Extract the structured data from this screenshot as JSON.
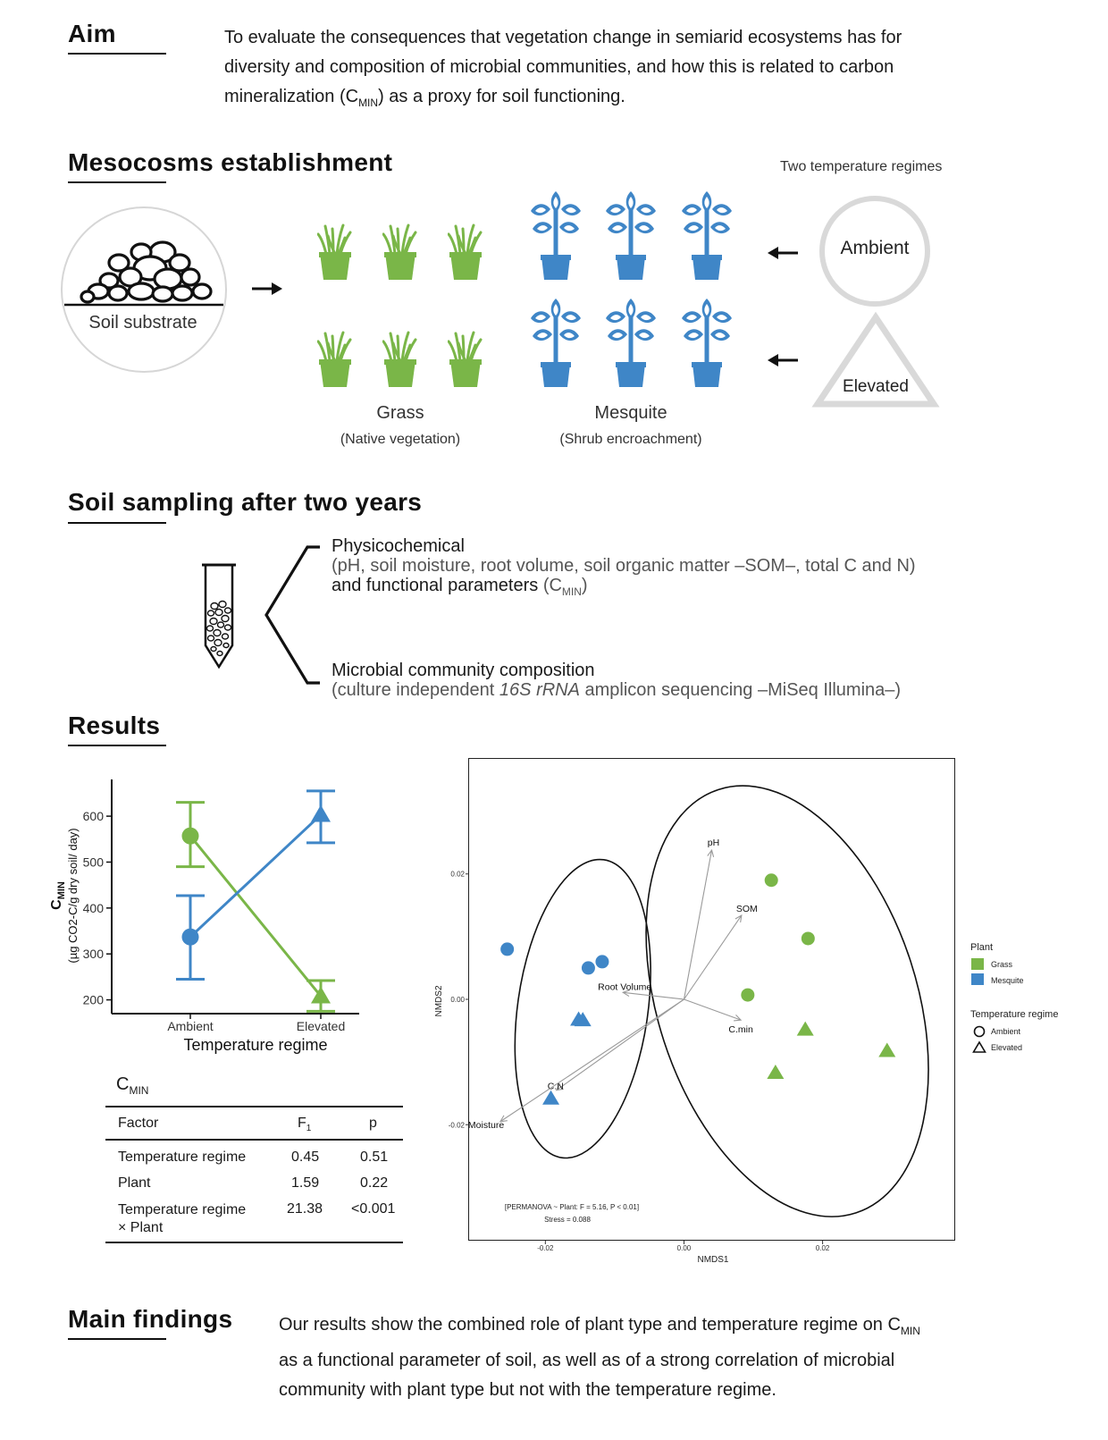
{
  "aim": {
    "heading": "Aim",
    "text_1": "To evaluate the consequences that vegetation change in semiarid ecosystems has for",
    "text_2": "diversity and composition of microbial communities, and how this is related to carbon",
    "text_3a": "mineralization (C",
    "text_3_sub": "MIN",
    "text_3b": ") as a proxy for soil functioning."
  },
  "mesocosms": {
    "heading": "Mesocosms establishment",
    "temp_title": "Two temperature regimes",
    "soil_label": "Soil substrate",
    "ambient_label": "Ambient",
    "elevated_label": "Elevated",
    "grass_label": "Grass",
    "grass_sub": "(Native vegetation)",
    "mesquite_label": "Mesquite",
    "mesquite_sub": "(Shrub encroachment)",
    "colors": {
      "grass": "#7ab648",
      "mesquite": "#3f86c7",
      "ring": "#d9d9d9"
    }
  },
  "sampling": {
    "heading": "Soil sampling after two years",
    "item1_title": "Physicochemical",
    "item1_detail": "(pH, soil moisture, root volume, soil organic matter –SOM–, total C and N)",
    "item1_line3a": "and functional parameters",
    "item1_line3b": "(C",
    "item1_line3_sub": "MIN",
    "item1_line3c": ")",
    "item2_title": "Microbial community composition",
    "item2_detail_a": "(culture independent",
    "item2_detail_italic": "16S rRNA",
    "item2_detail_b": "amplicon sequencing –MiSeq Illumina–)"
  },
  "results": {
    "heading": "Results",
    "anova": {
      "title": "C",
      "title_sub": "MIN",
      "headers": [
        "Factor",
        "F",
        "p"
      ],
      "f_sub": "1",
      "rows": [
        [
          "Temperature regime",
          "0.45",
          "0.51"
        ],
        [
          "Plant",
          "1.59",
          "0.22"
        ],
        [
          "Temperature regime",
          "21.38",
          "<0.001"
        ]
      ],
      "row3_line2": "× Plant"
    }
  },
  "findings": {
    "heading": "Main findings",
    "line1a": "Our results show the combined role of plant type and temperature regime on C",
    "line1_sub": "MIN",
    "line2": "as a functional parameter of soil, as well as of a strong correlation of microbial",
    "line3": "community with plant type but not with the temperature regime."
  },
  "chart_data": [
    {
      "type": "line",
      "xlabel": "Temperature regime",
      "ylabel_main": "C",
      "ylabel_sub": "MIN",
      "ylabel_units": "(µg CO2-C/g dry soil/ day)",
      "categories": [
        "Ambient",
        "Elevated"
      ],
      "yticks": [
        200,
        300,
        400,
        500,
        600
      ],
      "ylim": [
        170,
        680
      ],
      "series": [
        {
          "key": "grass",
          "values": [
            557,
            208
          ],
          "err_lo": [
            490,
            175
          ],
          "err_hi": [
            630,
            242
          ],
          "color": "#7ab648"
        },
        {
          "key": "mesquite",
          "values": [
            337,
            603
          ],
          "err_lo": [
            245,
            542
          ],
          "err_hi": [
            427,
            655
          ],
          "color": "#3f86c7"
        }
      ],
      "markers": [
        "circle",
        "triangle"
      ]
    },
    {
      "type": "scatter",
      "xlabel": "NMDS1",
      "ylabel": "NMDS2",
      "xticks": [
        "-0.02",
        "0.00",
        "0.02"
      ],
      "yticks": [
        "0.02",
        "0.00",
        "-0.02"
      ],
      "xlim": [
        -0.031,
        0.039
      ],
      "ylim": [
        -0.0385,
        0.0385
      ],
      "points": [
        {
          "plant": "mesquite",
          "regime": "ambient",
          "x": -0.0255,
          "y": 0.008
        },
        {
          "plant": "mesquite",
          "regime": "ambient",
          "x": -0.0138,
          "y": 0.005
        },
        {
          "plant": "mesquite",
          "regime": "ambient",
          "x": -0.0118,
          "y": 0.006
        },
        {
          "plant": "mesquite",
          "regime": "elevated",
          "x": -0.0152,
          "y": -0.0032
        },
        {
          "plant": "mesquite",
          "regime": "elevated",
          "x": -0.0146,
          "y": -0.0033
        },
        {
          "plant": "mesquite",
          "regime": "elevated",
          "x": -0.0192,
          "y": -0.0158
        },
        {
          "plant": "grass",
          "regime": "ambient",
          "x": 0.0126,
          "y": 0.019
        },
        {
          "plant": "grass",
          "regime": "ambient",
          "x": 0.0179,
          "y": 0.0097
        },
        {
          "plant": "grass",
          "regime": "ambient",
          "x": 0.0092,
          "y": 0.0007
        },
        {
          "plant": "grass",
          "regime": "elevated",
          "x": 0.0175,
          "y": -0.0048
        },
        {
          "plant": "grass",
          "regime": "elevated",
          "x": 0.0293,
          "y": -0.0082
        },
        {
          "plant": "grass",
          "regime": "elevated",
          "x": 0.0132,
          "y": -0.0117
        }
      ],
      "vectors": [
        {
          "label": "pH",
          "x": 0.004,
          "y": 0.0238
        },
        {
          "label": "SOM",
          "x": 0.0083,
          "y": 0.0134
        },
        {
          "label": "Root Volume",
          "x": -0.0088,
          "y": 0.0011
        },
        {
          "label": "C.min",
          "x": 0.0082,
          "y": -0.0033
        },
        {
          "label": "C:N",
          "x": -0.0184,
          "y": -0.0145
        },
        {
          "label": "Moisture",
          "x": -0.0265,
          "y": -0.0195
        }
      ],
      "ellipses": [
        {
          "cx": -0.0146,
          "cy": -0.0015,
          "rx": 0.0094,
          "ry": 0.024,
          "rot": 8
        },
        {
          "cx": 0.0149,
          "cy": -0.0003,
          "rx": 0.0187,
          "ry": 0.0355,
          "rot": -18
        }
      ],
      "annotation_1": "[PERMANOVA ~ Plant: F = 5.16, P < 0.01]",
      "annotation_2": "Stress = 0.088",
      "legend": {
        "plant_title": "Plant",
        "plant_items": [
          "Grass",
          "Mesquite"
        ],
        "regime_title": "Temperature regime",
        "regime_items": [
          "Ambient",
          "Elevated"
        ]
      }
    }
  ]
}
